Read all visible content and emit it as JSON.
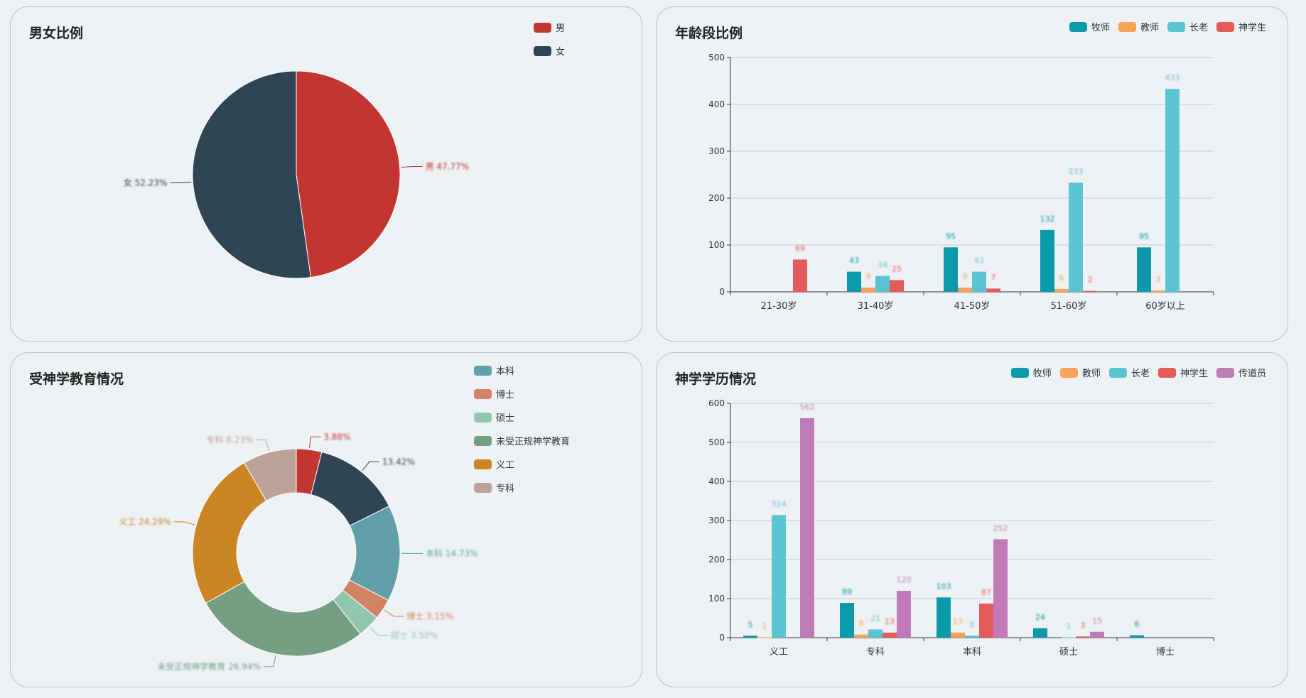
{
  "colors": {
    "pie1": [
      "#c23531",
      "#2f4554"
    ],
    "pie2": [
      "#c23531",
      "#2f4554",
      "#61a0a8",
      "#d48265",
      "#91c7ae",
      "#749f83",
      "#ca8622",
      "#bda29a"
    ],
    "bar": [
      "#0a9aaa",
      "#f7a35c",
      "#5bc4d2",
      "#e55a5a",
      "#c07ab8"
    ]
  },
  "panels": [
    {
      "title": "男女比例",
      "legend": [
        "男",
        "女"
      ],
      "chart_data": {
        "type": "pie",
        "slices": [
          {
            "name": "男",
            "value": 47.77,
            "label": "男 47.77%"
          },
          {
            "name": "女",
            "value": 52.23,
            "label": "女 52.23%"
          }
        ]
      }
    },
    {
      "title": "年龄段比例",
      "legend": [
        "牧师",
        "教师",
        "长老",
        "神学生"
      ],
      "chart_data": {
        "type": "bar",
        "categories": [
          "21-30岁",
          "31-40岁",
          "41-50岁",
          "51-60岁",
          "60岁以上"
        ],
        "ylim": [
          0,
          500
        ],
        "yticks": [
          0,
          100,
          200,
          300,
          400,
          500
        ],
        "series": [
          {
            "name": "牧师",
            "values": [
              0,
              43,
              95,
              132,
              95
            ]
          },
          {
            "name": "教师",
            "values": [
              0,
              9,
              9,
              6,
              3
            ]
          },
          {
            "name": "长老",
            "values": [
              0,
              34,
              43,
              233,
              433
            ]
          },
          {
            "name": "神学生",
            "values": [
              69,
              25,
              7,
              2,
              0
            ]
          }
        ]
      }
    },
    {
      "title": "受神学教育情况",
      "legend": [
        "本科",
        "博士",
        "硕士",
        "未受正规神学教育",
        "义工",
        "专科"
      ],
      "chart_data": {
        "type": "pie",
        "donut": true,
        "slices": [
          {
            "name": "",
            "value": 3.88,
            "label": "3.88%"
          },
          {
            "name": "",
            "value": 13.42,
            "label": "13.42%"
          },
          {
            "name": "本科",
            "value": 14.73,
            "label": "本科 14.73%"
          },
          {
            "name": "博士",
            "value": 3.15,
            "label": "博士 3.15%"
          },
          {
            "name": "硕士",
            "value": 3.5,
            "label": "硕士 3.50%"
          },
          {
            "name": "未受正规神学教育",
            "value": 26.94,
            "label": "未受正规神学教育 26.94%"
          },
          {
            "name": "义工",
            "value": 24.29,
            "label": "义工 24.29%"
          },
          {
            "name": "专科",
            "value": 8.23,
            "label": "专科 8.23%"
          }
        ]
      }
    },
    {
      "title": "神学学历情况",
      "legend": [
        "牧师",
        "教师",
        "长老",
        "神学生",
        "传道员"
      ],
      "chart_data": {
        "type": "bar",
        "categories": [
          "义工",
          "专科",
          "本科",
          "硕士",
          "博士"
        ],
        "ylim": [
          0,
          600
        ],
        "yticks": [
          0,
          100,
          200,
          300,
          400,
          500,
          600
        ],
        "series": [
          {
            "name": "牧师",
            "values": [
              5,
              89,
              103,
              24,
              6
            ]
          },
          {
            "name": "教师",
            "values": [
              1,
              8,
              13,
              0,
              0
            ]
          },
          {
            "name": "长老",
            "values": [
              314,
              21,
              5,
              1,
              0
            ]
          },
          {
            "name": "神学生",
            "values": [
              0,
              13,
              87,
              3,
              0
            ]
          },
          {
            "name": "传道员",
            "values": [
              562,
              120,
              252,
              15,
              0
            ]
          }
        ]
      }
    }
  ]
}
